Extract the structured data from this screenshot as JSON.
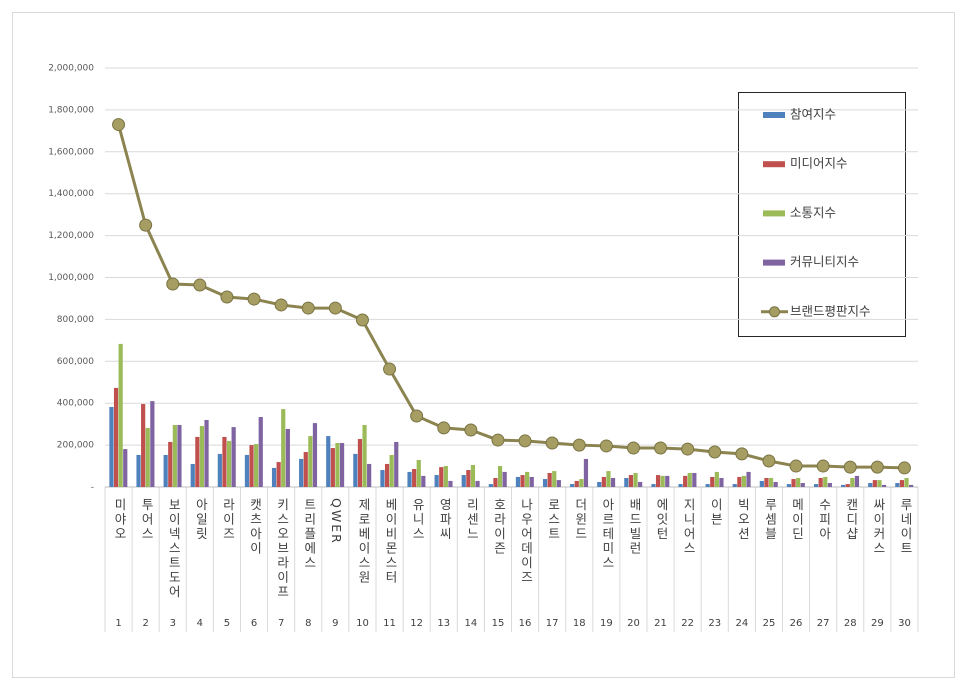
{
  "chart_data": {
    "type": "bar-line",
    "categories": [
      "미야오",
      "투어스",
      "보이넥스트도어",
      "아일릿",
      "라이즈",
      "캣츠아이",
      "키스오브라이프",
      "트리플에스",
      "QWER",
      "제로베이스원",
      "베이비몬스터",
      "유니스",
      "영파씨",
      "리센느",
      "호라이즌",
      "나우어데이즈",
      "로스트",
      "더윈드",
      "아르테미스",
      "배드빌런",
      "에잇턴",
      "지니어스",
      "이븐",
      "빅오션",
      "루셈블",
      "메이딘",
      "수피아",
      "캔디샵",
      "싸이커스",
      "루네이트"
    ],
    "category_ranks": [
      1,
      2,
      3,
      4,
      5,
      6,
      7,
      8,
      9,
      10,
      11,
      12,
      13,
      14,
      15,
      16,
      17,
      18,
      19,
      20,
      21,
      22,
      23,
      24,
      25,
      26,
      27,
      28,
      29,
      30
    ],
    "series": [
      {
        "name": "참여지수",
        "type": "bar",
        "color": "#4f81bd",
        "values": [
          382000,
          153000,
          153000,
          110000,
          158000,
          153000,
          91000,
          134000,
          243000,
          158000,
          81000,
          72000,
          57000,
          57000,
          14000,
          48000,
          38000,
          14000,
          24000,
          43000,
          14000,
          14000,
          14000,
          14000,
          29000,
          14000,
          14000,
          10000,
          19000,
          19000
        ]
      },
      {
        "name": "미디어지수",
        "type": "bar",
        "color": "#c0504d",
        "values": [
          473000,
          396000,
          215000,
          239000,
          239000,
          200000,
          119000,
          167000,
          186000,
          229000,
          110000,
          86000,
          95000,
          81000,
          43000,
          57000,
          67000,
          29000,
          48000,
          57000,
          57000,
          53000,
          48000,
          48000,
          43000,
          38000,
          43000,
          14000,
          33000,
          33000
        ]
      },
      {
        "name": "소통지수",
        "type": "bar",
        "color": "#9bbb59",
        "values": [
          683000,
          282000,
          296000,
          291000,
          220000,
          205000,
          372000,
          243000,
          210000,
          296000,
          153000,
          129000,
          100000,
          105000,
          100000,
          72000,
          76000,
          38000,
          76000,
          67000,
          53000,
          67000,
          72000,
          53000,
          43000,
          43000,
          48000,
          43000,
          33000,
          43000
        ]
      },
      {
        "name": "커뮤니티지수",
        "type": "bar",
        "color": "#8064a2",
        "values": [
          181000,
          410000,
          296000,
          320000,
          286000,
          334000,
          277000,
          305000,
          210000,
          110000,
          215000,
          53000,
          29000,
          29000,
          72000,
          48000,
          33000,
          134000,
          43000,
          24000,
          53000,
          67000,
          43000,
          72000,
          24000,
          19000,
          19000,
          53000,
          10000,
          10000
        ]
      },
      {
        "name": "브랜드평판지수",
        "type": "line",
        "color": "#8c8450",
        "values": [
          1730000,
          1250000,
          969000,
          964000,
          907000,
          897000,
          869000,
          854000,
          854000,
          797000,
          563000,
          339000,
          282000,
          272000,
          224000,
          220000,
          210000,
          200000,
          196000,
          186000,
          186000,
          181000,
          167000,
          158000,
          124000,
          100000,
          100000,
          95000,
          95000,
          91000
        ]
      }
    ],
    "ylim": [
      0,
      2000000
    ],
    "yticks": [
      {
        "value": 0,
        "label": "-"
      },
      {
        "value": 200000,
        "label": "200,000"
      },
      {
        "value": 400000,
        "label": "400,000"
      },
      {
        "value": 600000,
        "label": "600,000"
      },
      {
        "value": 800000,
        "label": "800,000"
      },
      {
        "value": 1000000,
        "label": "1,000,000"
      },
      {
        "value": 1200000,
        "label": "1,200,000"
      },
      {
        "value": 1400000,
        "label": "1,400,000"
      },
      {
        "value": 1600000,
        "label": "1,600,000"
      },
      {
        "value": 1800000,
        "label": "1,800,000"
      },
      {
        "value": 2000000,
        "label": "2,000,000"
      }
    ],
    "grid": true,
    "legend": "upper right"
  }
}
